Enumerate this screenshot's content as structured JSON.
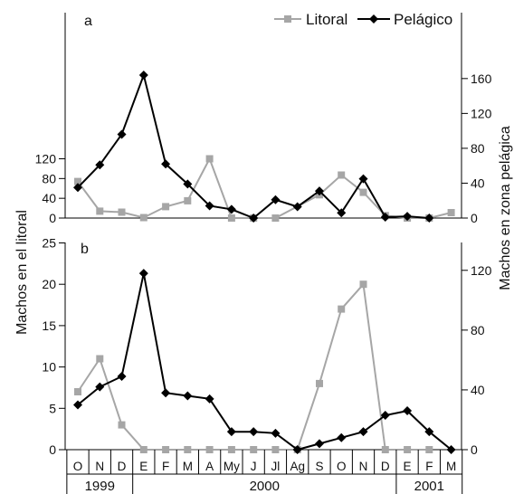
{
  "chart_data": [
    {
      "type": "line",
      "panel_label": "a",
      "categories": [
        "O",
        "N",
        "D",
        "E",
        "F",
        "M",
        "A",
        "My",
        "J",
        "Jl",
        "Ag",
        "S",
        "O",
        "N",
        "D",
        "E",
        "F",
        "M"
      ],
      "series": [
        {
          "name": "Litoral",
          "axis": "left",
          "color": "#a6a6a6",
          "marker": "square",
          "values": [
            74,
            14,
            12,
            1,
            23,
            35,
            120,
            0,
            0,
            0,
            null,
            47,
            87,
            52,
            5,
            0,
            0,
            11
          ]
        },
        {
          "name": "Pelágico",
          "axis": "right",
          "color": "#000000",
          "marker": "diamond",
          "values": [
            35,
            61,
            96,
            164,
            62,
            39,
            14,
            10,
            0,
            21,
            13,
            31,
            6,
            45,
            1,
            2,
            0,
            null
          ]
        }
      ],
      "left_axis": {
        "ylim": [
          0,
          140
        ],
        "ticks": [
          0,
          40,
          80,
          120
        ]
      },
      "right_axis": {
        "ylim": [
          0,
          180
        ],
        "ticks": [
          0,
          40,
          80,
          120,
          160
        ]
      },
      "legend": {
        "position": "top-right",
        "entries": [
          "Litoral",
          "Pelágico"
        ]
      }
    },
    {
      "type": "line",
      "panel_label": "b",
      "categories": [
        "O",
        "N",
        "D",
        "E",
        "F",
        "M",
        "A",
        "My",
        "J",
        "Jl",
        "Ag",
        "S",
        "O",
        "N",
        "D",
        "E",
        "F",
        "M"
      ],
      "series": [
        {
          "name": "Litoral",
          "axis": "left",
          "color": "#a6a6a6",
          "marker": "square",
          "values": [
            7,
            11,
            3,
            0,
            0,
            0,
            0,
            0,
            0,
            0,
            0,
            8,
            17,
            20,
            0,
            0,
            0,
            null
          ]
        },
        {
          "name": "Pelágico",
          "axis": "right",
          "color": "#000000",
          "marker": "diamond",
          "values": [
            30,
            42,
            49,
            118,
            38,
            36,
            34,
            12,
            12,
            11,
            0,
            4,
            8,
            12,
            23,
            26,
            12,
            0
          ]
        }
      ],
      "left_axis": {
        "ylim": [
          0,
          25
        ],
        "ticks": [
          0,
          5,
          10,
          15,
          20,
          25
        ]
      },
      "right_axis": {
        "ylim": [
          0,
          138
        ],
        "ticks": [
          0,
          40,
          80,
          120
        ]
      }
    }
  ],
  "axes": {
    "left_label": "Machos en el litoral",
    "right_label": "Machos en zona pelágica"
  },
  "years": [
    {
      "label": "1999",
      "from": 0,
      "to": 2
    },
    {
      "label": "2000",
      "from": 3,
      "to": 14
    },
    {
      "label": "2001",
      "from": 15,
      "to": 17
    }
  ],
  "legend_labels": {
    "litoral": "Litoral",
    "pelagico": "Pelágico"
  },
  "panel_labels": {
    "a": "a",
    "b": "b"
  }
}
